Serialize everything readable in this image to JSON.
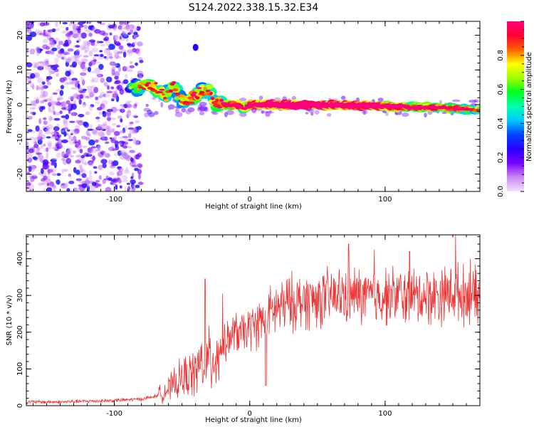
{
  "figure": {
    "title": "S124.2022.338.15.32.E34"
  },
  "chart_data": [
    {
      "type": "heatmap",
      "xlabel": "Height of straight line (km)",
      "ylabel": "Frequency (Hz)",
      "xlim": [
        -165,
        170
      ],
      "ylim": [
        -25,
        24
      ],
      "xticks": [
        -100,
        0,
        100
      ],
      "xtick_labels": [
        "-100",
        "0",
        "100"
      ],
      "yticks": [
        -20,
        -10,
        0,
        10,
        20
      ],
      "ytick_labels": [
        "-20",
        "-10",
        "0",
        "10",
        "20"
      ],
      "colorbar": {
        "label": "Normalized spectral amplitude",
        "range": [
          0,
          1
        ],
        "ticks": [
          0.0,
          0.2,
          0.4,
          0.6,
          0.8
        ],
        "tick_labels": [
          "0.0",
          "0.2",
          "0.4",
          "0.6",
          "0.8"
        ],
        "colors": [
          "#f5e0ff",
          "#cc88f5",
          "#7a00ff",
          "#2a00ff",
          "#0044ff",
          "#00c8ff",
          "#00ffb0",
          "#00ff20",
          "#a0ff00",
          "#ffff00",
          "#ff6000",
          "#ff0030",
          "#ff0080"
        ]
      },
      "noise_region": {
        "x_range": [
          -165,
          -80
        ],
        "y_range": [
          -25,
          24
        ],
        "amplitude": [
          0.05,
          0.3
        ]
      },
      "ridge": [
        {
          "x": -88,
          "y": 4.5,
          "a": 0.3
        },
        {
          "x": -80,
          "y": 5.5,
          "a": 0.45
        },
        {
          "x": -72,
          "y": 5,
          "a": 0.5
        },
        {
          "x": -66,
          "y": 4.5,
          "a": 0.55
        },
        {
          "x": -62,
          "y": 2.5,
          "a": 0.4
        },
        {
          "x": -56,
          "y": 5.5,
          "a": 0.45
        },
        {
          "x": -50,
          "y": 1,
          "a": 0.45
        },
        {
          "x": -45,
          "y": 1.5,
          "a": 0.5
        },
        {
          "x": -40,
          "y": 2.5,
          "a": 0.55
        },
        {
          "x": -35,
          "y": 4,
          "a": 0.45
        },
        {
          "x": -30,
          "y": 4,
          "a": 0.45
        },
        {
          "x": -25,
          "y": 0.5,
          "a": 0.55
        },
        {
          "x": -18,
          "y": 0,
          "a": 0.7
        },
        {
          "x": -10,
          "y": 0,
          "a": 0.75
        },
        {
          "x": -4,
          "y": -1.5,
          "a": 0.6
        },
        {
          "x": 0,
          "y": 0,
          "a": 0.7
        },
        {
          "x": 10,
          "y": 0,
          "a": 0.9
        },
        {
          "x": 40,
          "y": 0,
          "a": 0.95
        },
        {
          "x": 70,
          "y": -0.2,
          "a": 0.9
        },
        {
          "x": 100,
          "y": -0.5,
          "a": 0.8
        },
        {
          "x": 130,
          "y": -0.8,
          "a": 0.65
        },
        {
          "x": 150,
          "y": -1,
          "a": 0.6
        },
        {
          "x": 170,
          "y": -1.5,
          "a": 0.45
        }
      ],
      "isolated_blob": {
        "x": -40,
        "y": 16.5,
        "a": 0.25
      }
    },
    {
      "type": "line",
      "xlabel": "Height of straight line (km)",
      "ylabel": "SNR (10 * v/v)",
      "xlim": [
        -165,
        170
      ],
      "ylim": [
        0,
        465
      ],
      "xticks": [
        -100,
        0,
        100
      ],
      "xtick_labels": [
        "-100",
        "0",
        "100"
      ],
      "yticks": [
        0,
        100,
        200,
        300,
        400
      ],
      "ytick_labels": [
        "0",
        "100",
        "200",
        "300",
        "400"
      ],
      "line_color": "#ee3333",
      "series": [
        {
          "x": [
            -165,
            -140,
            -120,
            -100,
            -80,
            -70,
            -60,
            -50,
            -40,
            -35,
            -30,
            -25,
            -20,
            -15,
            -10,
            -5,
            0,
            5,
            10,
            15,
            20,
            25,
            30,
            40,
            50,
            60,
            70,
            80,
            90,
            100,
            110,
            120,
            130,
            140,
            150,
            160,
            170
          ],
          "values": [
            10,
            10,
            12,
            14,
            18,
            25,
            45,
            75,
            90,
            120,
            120,
            140,
            160,
            185,
            200,
            195,
            210,
            220,
            235,
            250,
            265,
            270,
            280,
            285,
            290,
            295,
            300,
            300,
            295,
            300,
            300,
            295,
            300,
            300,
            310,
            300,
            290
          ]
        }
      ],
      "peaks": [
        {
          "x": -33,
          "y": 345
        },
        {
          "x": -20,
          "y": 305
        },
        {
          "x": 73,
          "y": 440
        },
        {
          "x": 92,
          "y": 425
        },
        {
          "x": 118,
          "y": 420
        },
        {
          "x": 152,
          "y": 465
        },
        {
          "x": 163,
          "y": 400
        }
      ],
      "dips": [
        {
          "x": 12,
          "y": 55
        }
      ]
    }
  ]
}
